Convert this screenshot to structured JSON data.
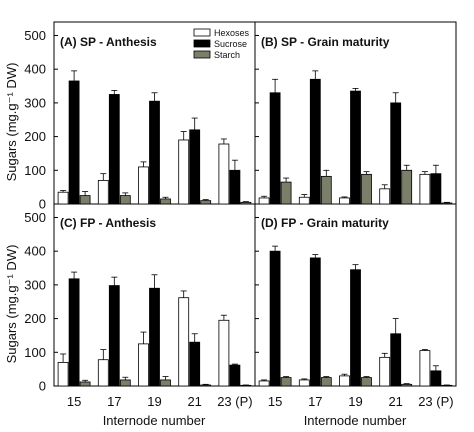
{
  "chart_data": {
    "type": "bar",
    "ylabel": "Sugars (mg.g⁻¹ DW)",
    "xlabel": "Internode number",
    "categories": [
      "15",
      "17",
      "19",
      "21",
      "23 (P)"
    ],
    "yticks": [
      0,
      100,
      200,
      300,
      400,
      500
    ],
    "ylim": [
      0,
      540
    ],
    "legend": [
      {
        "name": "Hexoses",
        "color": "#ffffff"
      },
      {
        "name": "Sucrose",
        "color": "#000000"
      },
      {
        "name": "Starch",
        "color": "#7a7f6a"
      }
    ],
    "legend_position": "top-right of panel A",
    "panels": [
      {
        "title": "(A) SP - Anthesis",
        "series": [
          {
            "name": "Hexoses",
            "values": [
              35,
              70,
              110,
              190,
              178
            ],
            "errors": [
              5,
              20,
              15,
              25,
              15
            ]
          },
          {
            "name": "Sucrose",
            "values": [
              365,
              325,
              305,
              220,
              100
            ],
            "errors": [
              30,
              12,
              25,
              35,
              30
            ]
          },
          {
            "name": "Starch",
            "values": [
              25,
              25,
              15,
              10,
              5
            ],
            "errors": [
              12,
              8,
              5,
              3,
              2
            ]
          }
        ]
      },
      {
        "title": "(B) SP - Grain maturity",
        "series": [
          {
            "name": "Hexoses",
            "values": [
              18,
              20,
              18,
              45,
              88
            ],
            "errors": [
              5,
              8,
              3,
              12,
              8
            ]
          },
          {
            "name": "Sucrose",
            "values": [
              330,
              370,
              335,
              300,
              90
            ],
            "errors": [
              40,
              25,
              8,
              30,
              25
            ]
          },
          {
            "name": "Starch",
            "values": [
              65,
              82,
              88,
              100,
              3
            ],
            "errors": [
              12,
              18,
              8,
              15,
              2
            ]
          }
        ]
      },
      {
        "title": "(C) FP - Anthesis",
        "series": [
          {
            "name": "Hexoses",
            "values": [
              70,
              78,
              125,
              262,
              195
            ],
            "errors": [
              25,
              30,
              35,
              20,
              15
            ]
          },
          {
            "name": "Sucrose",
            "values": [
              318,
              298,
              290,
              130,
              62
            ],
            "errors": [
              20,
              25,
              40,
              25,
              3
            ]
          },
          {
            "name": "Starch",
            "values": [
              12,
              18,
              18,
              3,
              2
            ],
            "errors": [
              5,
              8,
              10,
              2,
              1
            ]
          }
        ]
      },
      {
        "title": "(D) FP - Grain maturity",
        "series": [
          {
            "name": "Hexoses",
            "values": [
              15,
              18,
              30,
              85,
              105
            ],
            "errors": [
              3,
              3,
              5,
              12,
              3
            ]
          },
          {
            "name": "Sucrose",
            "values": [
              400,
              380,
              345,
              155,
              45
            ],
            "errors": [
              15,
              10,
              15,
              45,
              15
            ]
          },
          {
            "name": "Starch",
            "values": [
              25,
              25,
              25,
              5,
              2
            ],
            "errors": [
              3,
              3,
              3,
              2,
              1
            ]
          }
        ]
      }
    ]
  }
}
